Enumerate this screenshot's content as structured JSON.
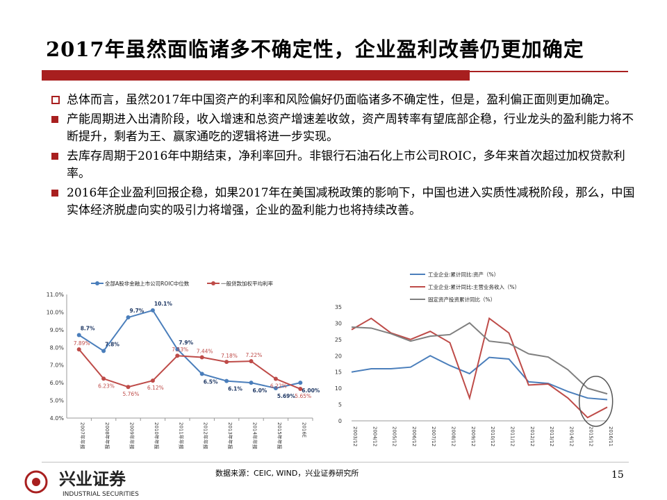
{
  "slide": {
    "title": "2017年虽然面临诸多不确定性，企业盈利改善仍更加确定",
    "bullets": [
      "总体而言，虽然2017年中国资产的利率和风险偏好仍面临诸多不确定性，但是，盈利偏正面则更加确定。",
      "产能周期进入出清阶段，收入增速和总资产增速差收敛，资产周转率有望底部企稳，行业龙头的盈利能力将不断提升，剩者为王、赢家通吃的逻辑将进一步实现。",
      "去库存周期于2016年中期结束，净利率回升。非银行石油石化上市公司ROIC，多年来首次超过加权贷款利率。",
      "2016年企业盈利回报企稳，如果2017年在美国减税政策的影响下，中国也进入实质性减税阶段，那么，中国实体经济脱虚向实的吸引力将增强，企业的盈利能力也将持续改善。"
    ],
    "source": "数据来源：CEIC, WIND，兴业证券研究所",
    "page_number": "15",
    "logo": {
      "name": "兴业证券",
      "english": "INDUSTRIAL SECURITIES"
    },
    "colors": {
      "accent": "#a81f1f",
      "blue": "#4a7ebb",
      "red": "#be4b48",
      "gray": "#7f7f7f"
    }
  },
  "chart_data": [
    {
      "type": "line",
      "categories": [
        "2007年年报",
        "2008年年报",
        "2009年年报",
        "2010年年报",
        "2011年年报",
        "2012年年报",
        "2013年年报",
        "2014年年报",
        "2015年年报",
        "2016E"
      ],
      "ylim": [
        4.0,
        11.0
      ],
      "yticks": [
        "4.0%",
        "5.0%",
        "6.0%",
        "7.0%",
        "8.0%",
        "9.0%",
        "10.0%",
        "11.0%"
      ],
      "legend_position": "top",
      "series": [
        {
          "name": "全部A股非金融上市公司ROIC中位数",
          "color": "#4a7ebb",
          "values": [
            8.7,
            7.8,
            9.7,
            10.1,
            7.9,
            6.5,
            6.1,
            6.0,
            5.69,
            6.0
          ],
          "labels": [
            "8.7%",
            "7.8%",
            "9.7%",
            "10.1%",
            "7.9%",
            "6.5%",
            "6.1%",
            "6.0%",
            "5.69%",
            "6.00%"
          ]
        },
        {
          "name": "一般贷款加权平均利率",
          "color": "#be4b48",
          "values": [
            7.89,
            6.23,
            5.76,
            6.12,
            7.53,
            7.44,
            7.18,
            7.22,
            6.22,
            5.65
          ],
          "labels": [
            "7.89%",
            "6.23%",
            "5.76%",
            "6.12%",
            "7.53%",
            "7.44%",
            "7.18%",
            "7.22%",
            "6.22%",
            "5.65%"
          ]
        }
      ]
    },
    {
      "type": "line",
      "categories": [
        "2003/12",
        "2004/12",
        "2005/12",
        "2006/12",
        "2007/12",
        "2008/12",
        "2009/12",
        "2010/12",
        "2011/12",
        "2012/12",
        "2013/12",
        "2014/12",
        "2015/12",
        "2016/11"
      ],
      "ylim": [
        0,
        35
      ],
      "yticks": [
        "0",
        "5",
        "10",
        "15",
        "20",
        "25",
        "30",
        "35"
      ],
      "legend_position": "top",
      "series": [
        {
          "name": "工业企业:累计同比:资产（%）",
          "color": "#4a7ebb",
          "values": [
            15,
            16,
            16,
            16.5,
            20,
            17,
            14.5,
            19.5,
            19,
            12,
            11.5,
            9,
            7,
            6.5
          ]
        },
        {
          "name": "工业企业:累计同比:主营业务收入（%）",
          "color": "#be4b48",
          "values": [
            28,
            31.5,
            27,
            25,
            27.5,
            24,
            7,
            31.5,
            27,
            11,
            11.3,
            7,
            1,
            4.2
          ]
        },
        {
          "name": "固定资产投资累计同比（%）",
          "color": "#7f7f7f",
          "values": [
            28.8,
            28.5,
            26.8,
            24.5,
            26,
            26.5,
            30.1,
            24.5,
            23.8,
            20.6,
            19.6,
            15.7,
            10,
            8.3
          ]
        }
      ]
    }
  ]
}
